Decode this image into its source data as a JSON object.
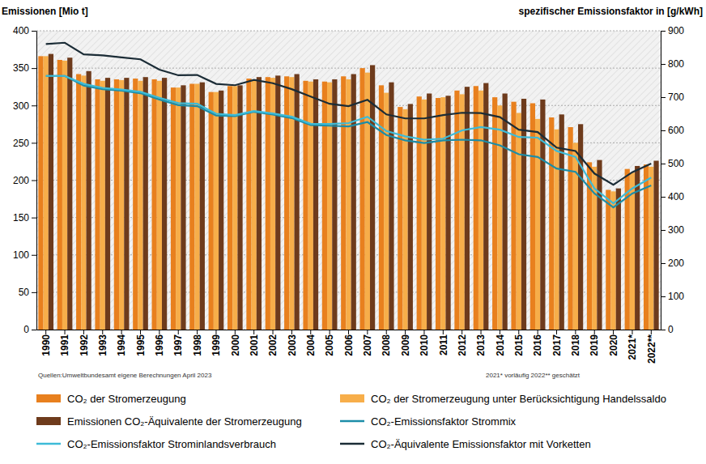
{
  "chart_data": {
    "type": "bar",
    "ylabel": "Emissionen  [Mio t]",
    "y2label": "spezifischer Emissionsfaktor  in [g/kWh]",
    "annotations": [
      "Quellen:Umweltbundesamt  eigene Berechnungen April 2023",
      "2021* vorläufig   2022** geschätzt"
    ],
    "categories": [
      "1990",
      "1991",
      "1992",
      "1993",
      "1994",
      "1995",
      "1996",
      "1997",
      "1998",
      "1999",
      "2000",
      "2001",
      "2002",
      "2003",
      "2004",
      "2005",
      "2006",
      "2007",
      "2008",
      "2009",
      "2010",
      "2011",
      "2012",
      "2013",
      "2014",
      "2015",
      "2016",
      "2017",
      "2018",
      "2019",
      "2020",
      "2021*",
      "2022**"
    ],
    "ylim": [
      0,
      400
    ],
    "yticks": [
      0,
      50,
      100,
      150,
      200,
      250,
      300,
      350,
      400
    ],
    "y2lim": [
      0,
      900
    ],
    "y2ticks": [
      0,
      100,
      200,
      300,
      400,
      500,
      600,
      700,
      800,
      900
    ],
    "grid": true,
    "legend": "bottom",
    "series": [
      {
        "name": "CO₂ der Stromerzeugung",
        "type": "bar",
        "color": "#e8801e",
        "values": [
          366,
          361,
          342,
          335,
          335,
          336,
          335,
          324,
          329,
          318,
          326,
          336,
          338,
          339,
          333,
          332,
          339,
          350,
          327,
          298,
          312,
          310,
          320,
          326,
          311,
          305,
          303,
          284,
          271,
          224,
          187,
          215,
          221
        ]
      },
      {
        "name": "CO₂ der Stromerzeugung unter Berücksichtigung Handelssaldo",
        "type": "bar",
        "color": "#f7ae4a",
        "values": [
          366,
          360,
          340,
          333,
          334,
          333,
          333,
          324,
          329,
          318,
          326,
          334,
          337,
          338,
          332,
          331,
          335,
          344,
          317,
          295,
          308,
          311,
          315,
          320,
          300,
          290,
          282,
          268,
          250,
          218,
          185,
          210,
          218
        ]
      },
      {
        "name": "Emissionen CO₂-Äquivalente der Stromerzeugung",
        "type": "bar",
        "color": "#6e3b1c",
        "values": [
          369,
          364,
          346,
          337,
          337,
          338,
          337,
          327,
          331,
          320,
          327,
          338,
          340,
          342,
          335,
          335,
          342,
          354,
          331,
          302,
          316,
          313,
          325,
          330,
          316,
          309,
          308,
          288,
          275,
          227,
          189,
          219,
          226
        ]
      },
      {
        "name": "CO₂-Emissionsfaktor Strommix",
        "type": "line",
        "axis": "y2",
        "color": "#1c8da8",
        "values": [
          764,
          764,
          735,
          724,
          720,
          712,
          693,
          676,
          673,
          645,
          643,
          656,
          648,
          637,
          616,
          614,
          612,
          625,
          586,
          570,
          562,
          570,
          572,
          570,
          555,
          528,
          520,
          485,
          475,
          410,
          368,
          410,
          434
        ]
      },
      {
        "name": "CO₂-Emissionsfaktor Strominlandsverbrauch",
        "type": "line",
        "axis": "y2",
        "color": "#3dbbd8",
        "values": [
          764,
          764,
          740,
          728,
          723,
          716,
          698,
          682,
          680,
          650,
          646,
          658,
          651,
          641,
          620,
          619,
          622,
          641,
          598,
          582,
          572,
          575,
          600,
          610,
          602,
          580,
          578,
          538,
          520,
          425,
          380,
          425,
          458
        ]
      },
      {
        "name": "CO₂-Äquivalente Emissionsfaktor mit Vorketten",
        "type": "line",
        "axis": "y2",
        "color": "#1b2c36",
        "values": [
          860,
          864,
          829,
          826,
          820,
          814,
          783,
          766,
          767,
          740,
          736,
          752,
          742,
          724,
          702,
          680,
          673,
          692,
          648,
          636,
          636,
          646,
          653,
          652,
          640,
          602,
          595,
          548,
          538,
          470,
          436,
          474,
          500
        ]
      }
    ]
  }
}
